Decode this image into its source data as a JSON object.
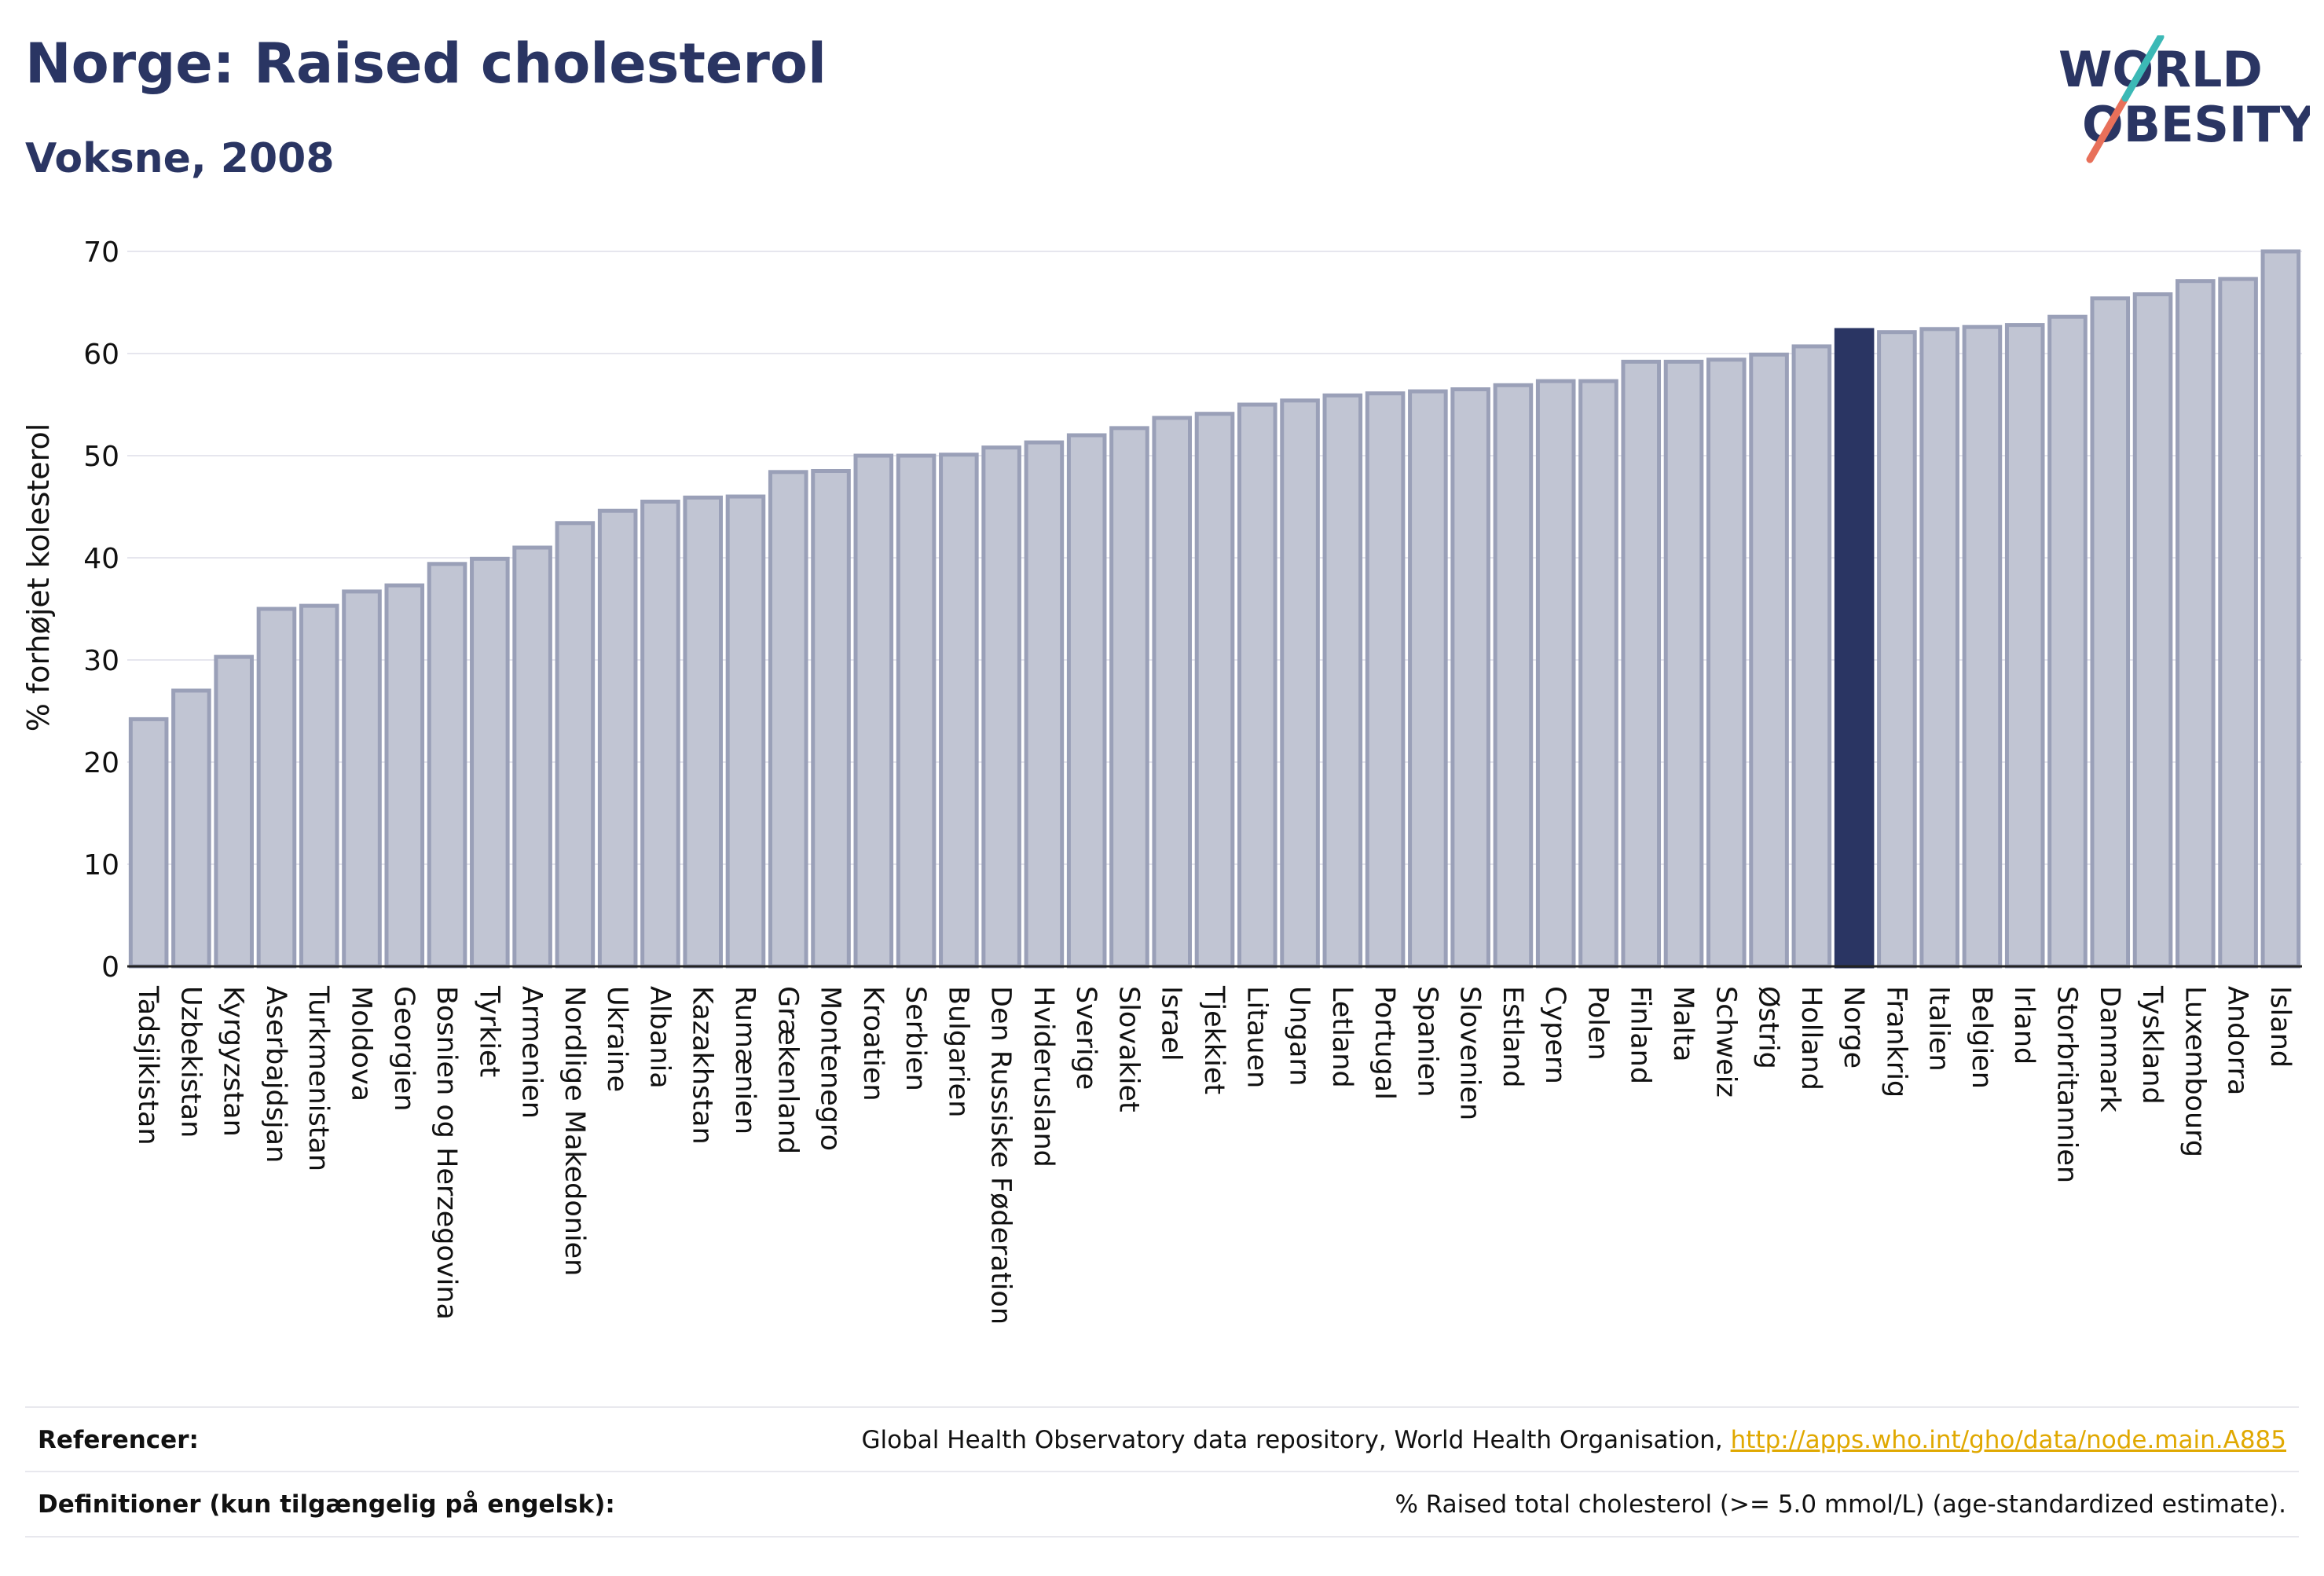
{
  "header": {
    "title": "Norge: Raised cholesterol",
    "subtitle": "Voksne, 2008"
  },
  "logo": {
    "line1": "WORLD",
    "line2": "OBESITY",
    "text_color": "#2a3563",
    "slash_colors": [
      "#e8705a",
      "#3cb9b6"
    ]
  },
  "chart_data": {
    "type": "bar",
    "ylabel": "% forhøjet kolesterol",
    "xlabel": "",
    "ylim": [
      0,
      70
    ],
    "yticks": [
      0,
      10,
      20,
      30,
      40,
      50,
      60,
      70
    ],
    "grid": true,
    "highlight": "Norge",
    "colors": {
      "bar": "#c1c5d3",
      "bar_edge": "#9aa0b8",
      "highlight": "#2a3563",
      "grid": "#e6e6ee",
      "axis": "#222222"
    },
    "categories": [
      "Tadsjikistan",
      "Uzbekistan",
      "Kyrgyzstan",
      "Aserbajdsjan",
      "Turkmenistan",
      "Moldova",
      "Georgien",
      "Bosnien og Herzegovina",
      "Tyrkiet",
      "Armenien",
      "Nordlige Makedonien",
      "Ukraine",
      "Albania",
      "Kazakhstan",
      "Rumænien",
      "Grækenland",
      "Montenegro",
      "Kroatien",
      "Serbien",
      "Bulgarien",
      "Den Russiske Føderation",
      "Hviderusland",
      "Sverige",
      "Slovakiet",
      "Israel",
      "Tjekkiet",
      "Litauen",
      "Ungarn",
      "Letland",
      "Portugal",
      "Spanien",
      "Slovenien",
      "Estland",
      "Cypern",
      "Polen",
      "Finland",
      "Malta",
      "Schweiz",
      "Østrig",
      "Holland",
      "Norge",
      "Frankrig",
      "Italien",
      "Belgien",
      "Irland",
      "Storbritannien",
      "Danmark",
      "Tyskland",
      "Luxembourg",
      "Andorra",
      "Island"
    ],
    "values": [
      24.2,
      27.0,
      30.3,
      35.0,
      35.3,
      36.7,
      37.3,
      39.4,
      39.9,
      41.0,
      43.4,
      44.6,
      45.5,
      45.9,
      46.0,
      48.4,
      48.5,
      50.0,
      50.0,
      50.1,
      50.8,
      51.3,
      52.0,
      52.7,
      53.7,
      54.1,
      55.0,
      55.4,
      55.9,
      56.1,
      56.3,
      56.5,
      56.9,
      57.3,
      57.3,
      59.2,
      59.2,
      59.4,
      59.9,
      60.7,
      62.3,
      62.1,
      62.4,
      62.6,
      62.8,
      63.6,
      65.4,
      65.8,
      67.1,
      67.3,
      70.0
    ]
  },
  "footer": {
    "references_label": "Referencer:",
    "references_text": "Global Health Observatory data repository, World Health Organisation, ",
    "references_link": "http://apps.who.int/gho/data/node.main.A885",
    "definitions_label": "Definitioner (kun tilgængelig på engelsk):",
    "definitions_text": "% Raised total cholesterol (>= 5.0 mmol/L) (age-standardized estimate)."
  }
}
